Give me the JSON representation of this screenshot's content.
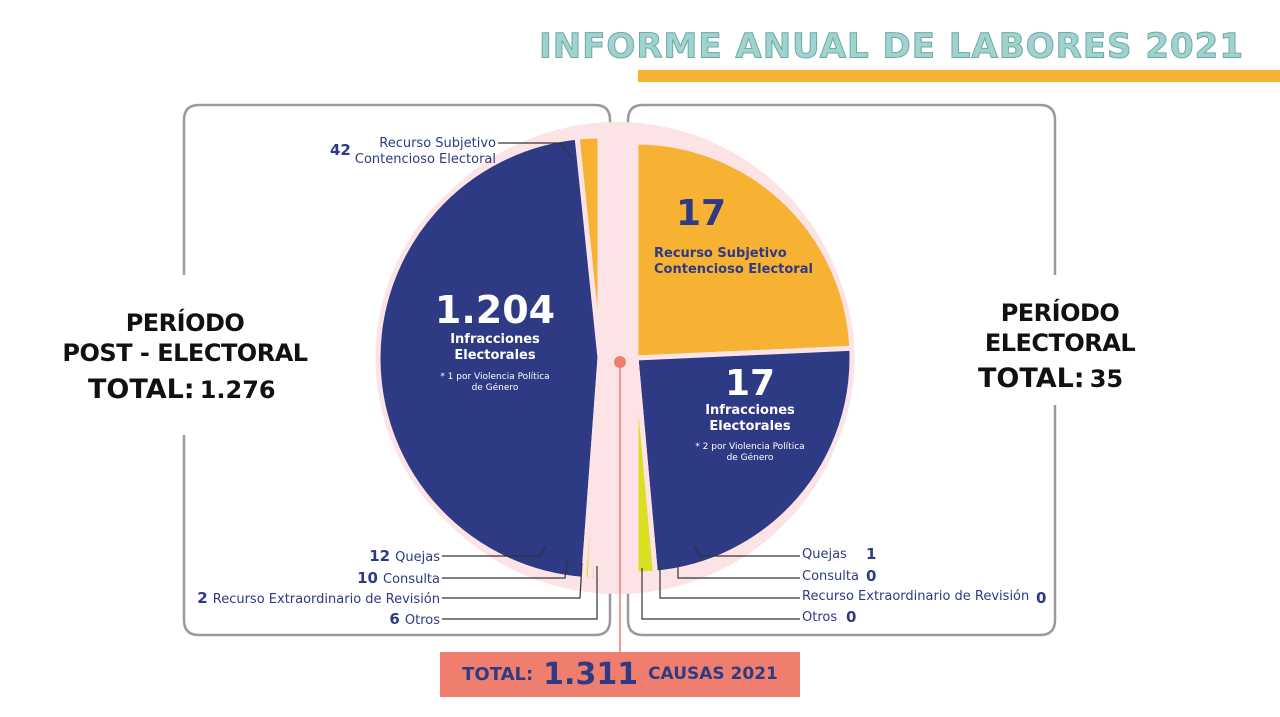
{
  "header": {
    "title": "INFORME ANUAL DE LABORES 2021"
  },
  "chart_data": [
    {
      "type": "pie",
      "side": "left",
      "period": "PERÍODO\nPOST - ELECTORAL",
      "total_title": "TOTAL:",
      "total": "1.276",
      "categories": [
        "Recurso Subjetivo\nContencioso Electoral",
        "Infracciones\nElectorales",
        "Quejas",
        "Consulta",
        "Recurso Extraordinario de Revisión",
        "Otros"
      ],
      "values": [
        42,
        1204,
        12,
        10,
        2,
        6
      ],
      "value_labels": [
        "42",
        "1.204",
        "12",
        "10",
        "2",
        "6"
      ],
      "colors": [
        "#f7b133",
        "#2e3a84",
        "#d9e021",
        "#3aaa35",
        "#1ba1e2",
        "#92278f"
      ],
      "note": "* 1 por Violencia Política\nde Género"
    },
    {
      "type": "pie",
      "side": "right",
      "period": "PERÍODO\nELECTORAL",
      "total_title": "TOTAL:",
      "total": "35",
      "categories": [
        "Recurso Subjetivo\nContencioso Electoral",
        "Infracciones\nElectorales",
        "Quejas",
        "Consulta",
        "Recurso Extraordinario de Revisión",
        "Otros"
      ],
      "values": [
        17,
        17,
        1,
        0,
        0,
        0
      ],
      "value_labels": [
        "17",
        "17",
        "1",
        "0",
        "0",
        "0"
      ],
      "colors": [
        "#f7b133",
        "#2e3a84",
        "#d9e021",
        "#3aaa35",
        "#1ba1e2",
        "#92278f"
      ],
      "note": "* 2 por Violencia Política\nde Género"
    }
  ],
  "footer": {
    "title": "TOTAL:",
    "total": "1.311",
    "unit": "CAUSAS 2021"
  }
}
